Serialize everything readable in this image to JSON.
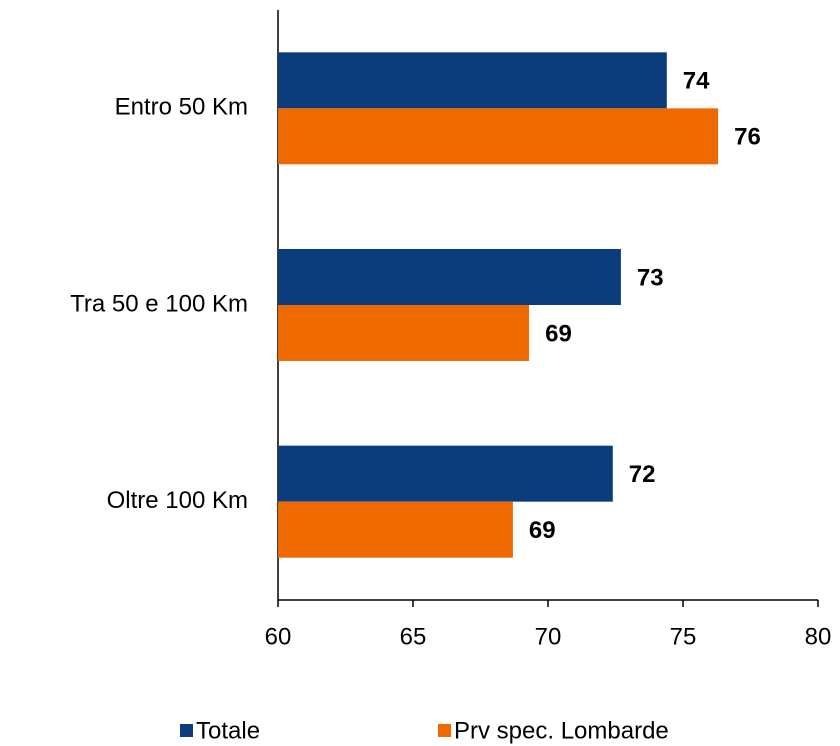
{
  "chart_data": {
    "type": "hbar",
    "categories": [
      "Entro 50 Km",
      "Tra 50 e 100 Km",
      "Oltre 100 Km"
    ],
    "series": [
      {
        "name": "Totale",
        "color": "#0b3c7c",
        "values": [
          74.4,
          72.7,
          72.4
        ],
        "value_labels": [
          "74",
          "73",
          "72"
        ]
      },
      {
        "name": "Prv spec. Lombarde",
        "color": "#ee6a00",
        "values": [
          76.3,
          69.3,
          68.7
        ],
        "value_labels": [
          "76",
          "69",
          "69"
        ]
      }
    ],
    "xlim": [
      60,
      80
    ],
    "xticks": [
      60,
      65,
      70,
      75,
      80
    ],
    "legend": "bottom"
  }
}
